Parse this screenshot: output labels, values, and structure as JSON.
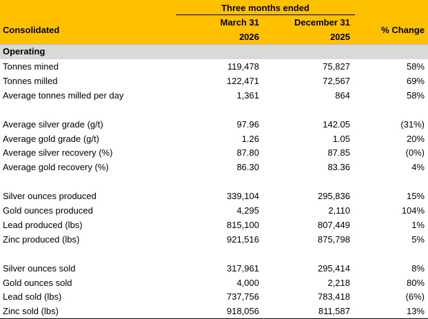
{
  "header": {
    "group": "Three months ended",
    "row_label": "Consolidated",
    "periods": [
      {
        "month": "March 31",
        "year": "2026"
      },
      {
        "month": "December 31",
        "year": "2025"
      }
    ],
    "change": "% Change"
  },
  "section": "Operating",
  "groups": [
    [
      [
        "Tonnes mined",
        "119,478",
        "75,827",
        "58%"
      ],
      [
        "Tonnes milled",
        "122,471",
        "72,567",
        "69%"
      ],
      [
        "Average tonnes milled per day",
        "1,361",
        "864",
        "58%"
      ]
    ],
    [
      [
        "Average silver grade (g/t)",
        "97.96",
        "142.05",
        "(31%)"
      ],
      [
        "Average gold grade (g/t)",
        "1.26",
        "1.05",
        "20%"
      ],
      [
        "Average silver recovery (%)",
        "87.80",
        "87.85",
        "(0%)"
      ],
      [
        "Average gold recovery (%)",
        "86.30",
        "83.36",
        "4%"
      ]
    ],
    [
      [
        "Silver ounces produced",
        "339,104",
        "295,836",
        "15%"
      ],
      [
        "Gold ounces produced",
        "4,295",
        "2,110",
        "104%"
      ],
      [
        "Lead produced (lbs)",
        "815,100",
        "807,449",
        "1%"
      ],
      [
        "Zinc produced (lbs)",
        "921,516",
        "875,798",
        "5%"
      ]
    ],
    [
      [
        "Silver ounces sold",
        "317,961",
        "295,414",
        "8%"
      ],
      [
        "Gold ounces sold",
        "4,000",
        "2,218",
        "80%"
      ],
      [
        "Lead sold (lbs)",
        "737,756",
        "783,418",
        "(6%)"
      ],
      [
        "Zinc sold (lbs)",
        "918,056",
        "811,587",
        "13%"
      ]
    ]
  ]
}
